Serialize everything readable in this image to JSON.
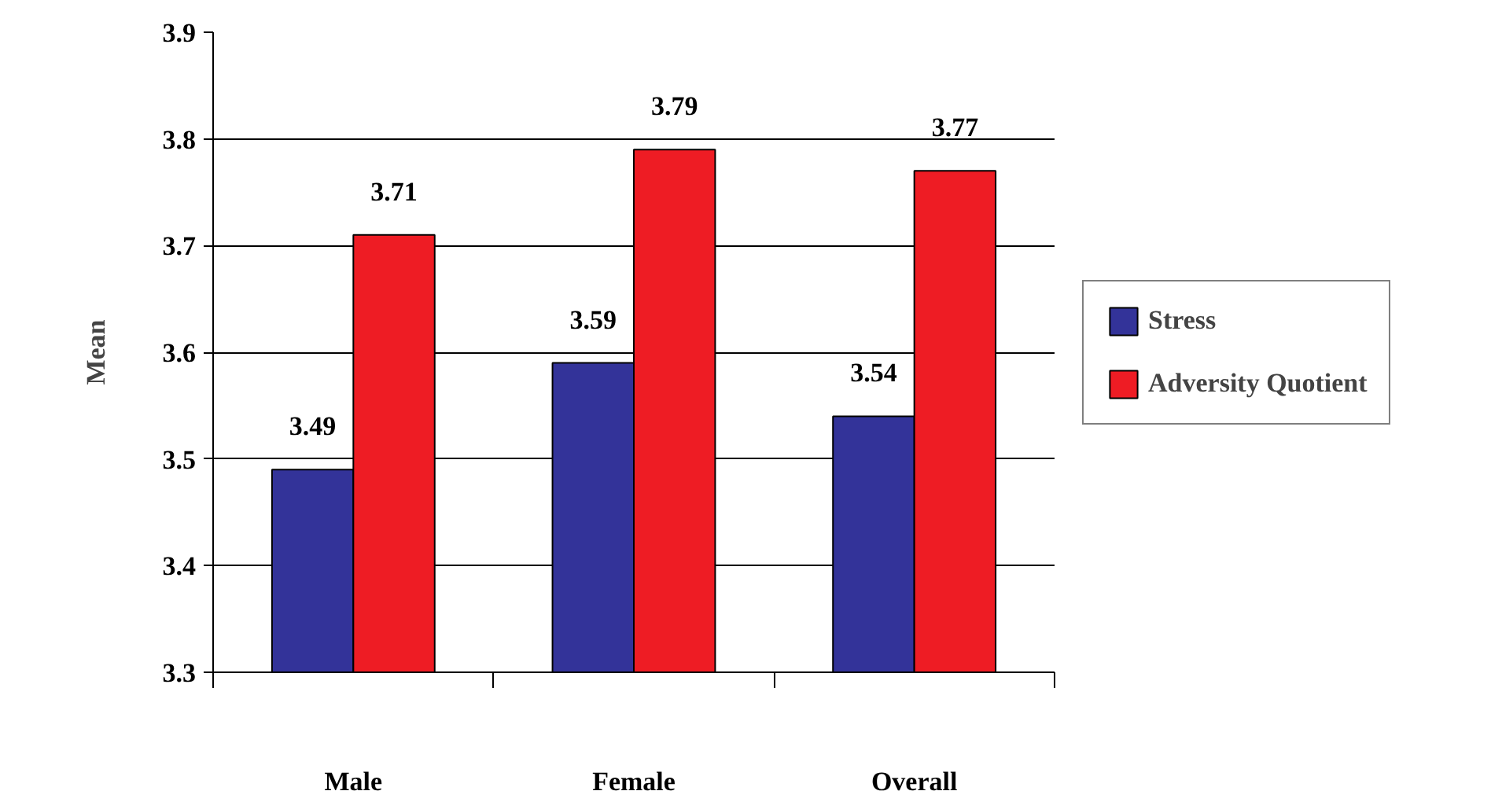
{
  "chart_data": {
    "type": "bar",
    "ylabel": "Mean",
    "categories": [
      "Male",
      "Female",
      "Overall"
    ],
    "series": [
      {
        "name": "Stress",
        "color": "#333399",
        "values": [
          3.49,
          3.59,
          3.54
        ]
      },
      {
        "name": "Adversity Quotient",
        "color": "#ee1c24",
        "values": [
          3.71,
          3.79,
          3.77
        ]
      }
    ],
    "ylim": [
      3.3,
      3.9
    ],
    "yticks": [
      3.3,
      3.4,
      3.5,
      3.6,
      3.7,
      3.8,
      3.9
    ],
    "grid": "y",
    "legend": "right",
    "data_labels": true
  }
}
